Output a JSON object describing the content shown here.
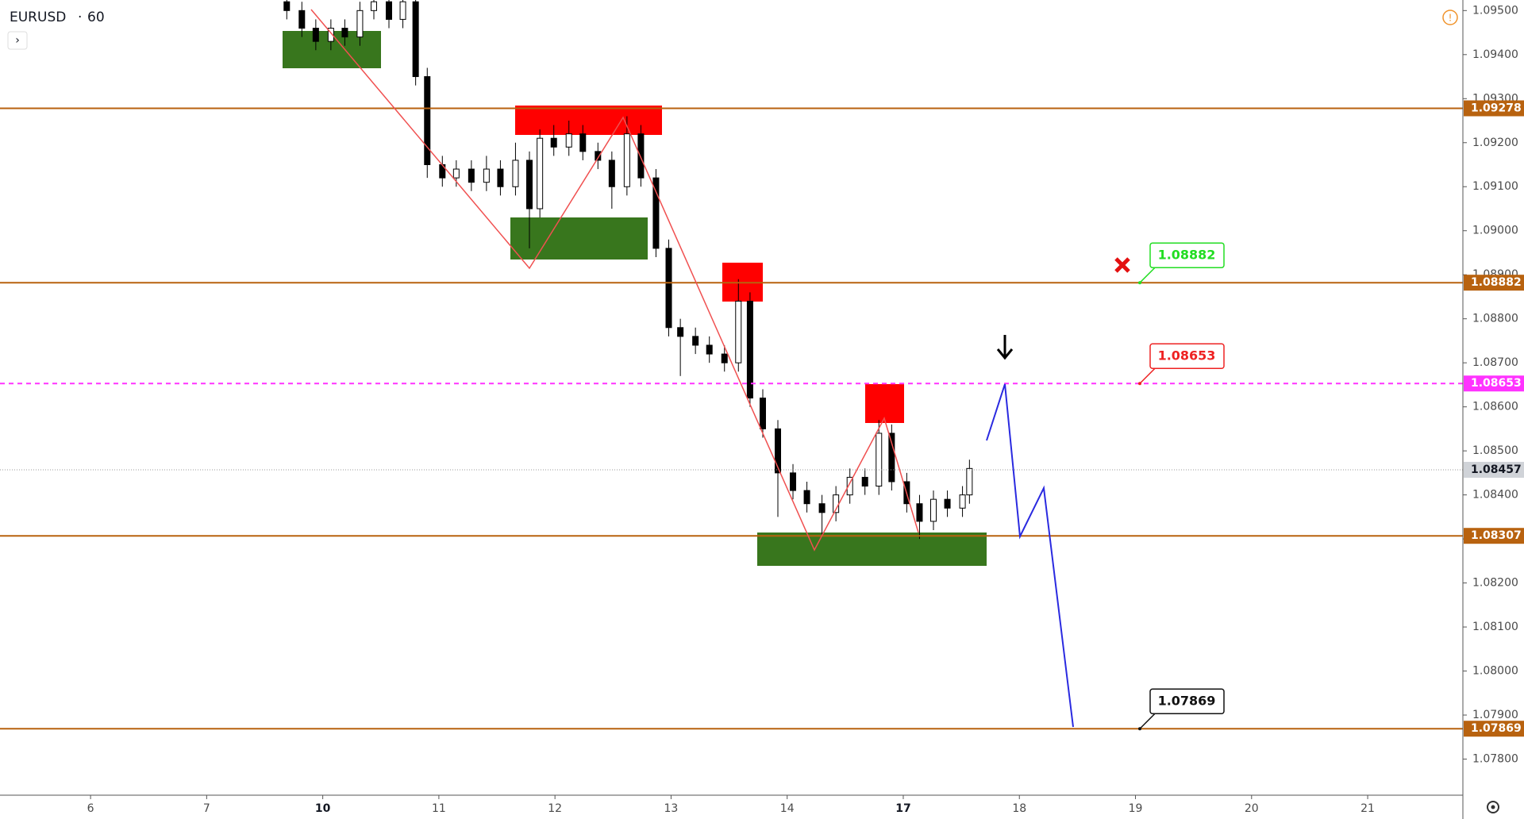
{
  "header": {
    "symbol": "EURUSD",
    "interval": "60"
  },
  "chart_data": {
    "type": "candlestick",
    "xlim": [
      -0.78,
      11.82
    ],
    "ylim": [
      1.07718,
      1.09524
    ],
    "xticks": [
      {
        "value": 0,
        "label": "6"
      },
      {
        "value": 1,
        "label": "7"
      },
      {
        "value": 2,
        "label": "10"
      },
      {
        "value": 3,
        "label": "11"
      },
      {
        "value": 4,
        "label": "12"
      },
      {
        "value": 5,
        "label": "13"
      },
      {
        "value": 6,
        "label": "14"
      },
      {
        "value": 7,
        "label": "17"
      },
      {
        "value": 8,
        "label": "18"
      },
      {
        "value": 9,
        "label": "19"
      },
      {
        "value": 10,
        "label": "20"
      },
      {
        "value": 11,
        "label": "21"
      }
    ],
    "bold_xticks": [
      2,
      7
    ],
    "yticks": [
      {
        "value": 1.095,
        "label": "1.09500"
      },
      {
        "value": 1.094,
        "label": "1.09400"
      },
      {
        "value": 1.093,
        "label": "1.09300"
      },
      {
        "value": 1.092,
        "label": "1.09200"
      },
      {
        "value": 1.091,
        "label": "1.09100"
      },
      {
        "value": 1.09,
        "label": "1.09000"
      },
      {
        "value": 1.089,
        "label": "1.08900"
      },
      {
        "value": 1.088,
        "label": "1.08800"
      },
      {
        "value": 1.087,
        "label": "1.08700"
      },
      {
        "value": 1.086,
        "label": "1.08600"
      },
      {
        "value": 1.085,
        "label": "1.08500"
      },
      {
        "value": 1.084,
        "label": "1.08400"
      },
      {
        "value": 1.083,
        "label": "1.08300"
      },
      {
        "value": 1.082,
        "label": "1.08200"
      },
      {
        "value": 1.081,
        "label": "1.08100"
      },
      {
        "value": 1.08,
        "label": "1.08000"
      },
      {
        "value": 1.079,
        "label": "1.07900"
      },
      {
        "value": 1.078,
        "label": "1.07800"
      }
    ],
    "up_color": "#ffffff",
    "down_color": "#000000",
    "candles": [
      [
        1.69,
        1.0952,
        1.0954,
        1.0948,
        1.095
      ],
      [
        1.82,
        1.095,
        1.0952,
        1.0944,
        1.0946
      ],
      [
        1.94,
        1.0946,
        1.0948,
        1.0941,
        1.0943
      ],
      [
        2.07,
        1.0943,
        1.0948,
        1.0941,
        1.0946
      ],
      [
        2.19,
        1.0946,
        1.0948,
        1.0942,
        1.0944
      ],
      [
        2.32,
        1.0944,
        1.0952,
        1.0942,
        1.095
      ],
      [
        2.44,
        1.095,
        1.0954,
        1.0948,
        1.0952
      ],
      [
        2.57,
        1.0952,
        1.0954,
        1.0946,
        1.0948
      ],
      [
        2.69,
        1.0948,
        1.0954,
        1.0946,
        1.0952
      ],
      [
        2.8,
        1.0952,
        1.0954,
        1.0933,
        1.0935
      ],
      [
        2.9,
        1.0935,
        1.0937,
        1.0912,
        1.0915
      ],
      [
        3.03,
        1.0915,
        1.0917,
        1.091,
        1.0912
      ],
      [
        3.15,
        1.0912,
        1.0916,
        1.091,
        1.0914
      ],
      [
        3.28,
        1.0914,
        1.0916,
        1.0909,
        1.0911
      ],
      [
        3.41,
        1.0911,
        1.0917,
        1.0909,
        1.0914
      ],
      [
        3.53,
        1.0914,
        1.0916,
        1.0908,
        1.091
      ],
      [
        3.66,
        1.091,
        1.092,
        1.0908,
        1.0916
      ],
      [
        3.78,
        1.0916,
        1.0918,
        1.0896,
        1.0905
      ],
      [
        3.87,
        1.0905,
        1.0923,
        1.0903,
        1.0921
      ],
      [
        3.99,
        1.0921,
        1.0924,
        1.0917,
        1.0919
      ],
      [
        4.12,
        1.0919,
        1.0925,
        1.0917,
        1.0922
      ],
      [
        4.24,
        1.0922,
        1.0924,
        1.0916,
        1.0918
      ],
      [
        4.37,
        1.0918,
        1.092,
        1.0914,
        1.0916
      ],
      [
        4.49,
        1.0916,
        1.0918,
        1.0905,
        1.091
      ],
      [
        4.62,
        1.091,
        1.0926,
        1.0908,
        1.0922
      ],
      [
        4.74,
        1.0922,
        1.0924,
        1.091,
        1.0912
      ],
      [
        4.87,
        1.0912,
        1.0914,
        1.0894,
        1.0896
      ],
      [
        4.98,
        1.0896,
        1.0898,
        1.0876,
        1.0878
      ],
      [
        5.08,
        1.0878,
        1.088,
        1.0867,
        1.0876
      ],
      [
        5.21,
        1.0876,
        1.0878,
        1.0872,
        1.0874
      ],
      [
        5.33,
        1.0874,
        1.0876,
        1.087,
        1.0872
      ],
      [
        5.46,
        1.0872,
        1.0874,
        1.0868,
        1.087
      ],
      [
        5.58,
        1.087,
        1.0889,
        1.0868,
        1.0884
      ],
      [
        5.68,
        1.0884,
        1.0886,
        1.086,
        1.0862
      ],
      [
        5.79,
        1.0862,
        1.0864,
        1.0853,
        1.0855
      ],
      [
        5.92,
        1.0855,
        1.0857,
        1.0835,
        1.0845
      ],
      [
        6.05,
        1.0845,
        1.0847,
        1.0839,
        1.0841
      ],
      [
        6.17,
        1.0841,
        1.0843,
        1.0836,
        1.0838
      ],
      [
        6.3,
        1.0838,
        1.084,
        1.0831,
        1.0836
      ],
      [
        6.42,
        1.0836,
        1.0842,
        1.0834,
        1.084
      ],
      [
        6.54,
        1.084,
        1.0846,
        1.0838,
        1.0844
      ],
      [
        6.67,
        1.0844,
        1.0846,
        1.084,
        1.0842
      ],
      [
        6.79,
        1.0842,
        1.0857,
        1.084,
        1.0854
      ],
      [
        6.9,
        1.0854,
        1.0856,
        1.0841,
        1.0843
      ],
      [
        7.03,
        1.0843,
        1.0845,
        1.0836,
        1.0838
      ],
      [
        7.14,
        1.0838,
        1.084,
        1.083,
        1.0834
      ],
      [
        7.26,
        1.0834,
        1.0841,
        1.0832,
        1.0839
      ],
      [
        7.38,
        1.0839,
        1.0841,
        1.0835,
        1.0837
      ],
      [
        7.51,
        1.0837,
        1.0842,
        1.0835,
        1.084
      ],
      [
        7.57,
        1.084,
        1.0848,
        1.0838,
        1.0846
      ]
    ],
    "levels": [
      {
        "price": 1.09278,
        "color": "#b8620f",
        "dashed": false,
        "label_fill": "#b8620f"
      },
      {
        "price": 1.08882,
        "color": "#b8620f",
        "dashed": false,
        "label_fill": "#b8620f",
        "callout_color": "#22dd22"
      },
      {
        "price": 1.08653,
        "color": "#ff33ff",
        "dashed": true,
        "label_fill": "#ff33ff",
        "callout_color": "#ee2222"
      },
      {
        "price": 1.08307,
        "color": "#b8620f",
        "dashed": false,
        "label_fill": "#b8620f"
      },
      {
        "price": 1.07869,
        "color": "#b8620f",
        "dashed": false,
        "label_fill": "#b8620f",
        "callout_color": "#111111"
      }
    ],
    "last_price": 1.08457
  }
}
